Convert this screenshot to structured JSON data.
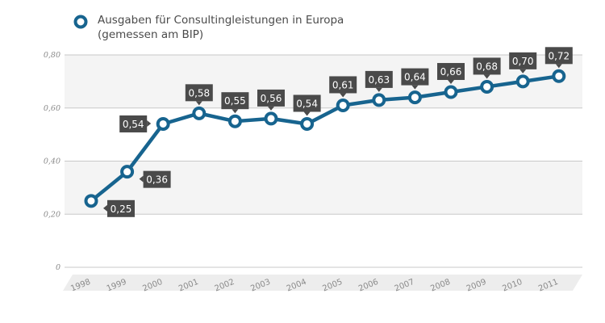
{
  "chart_data": {
    "type": "line",
    "title": "",
    "legend": {
      "entries": [
        "Ausgaben für Consultingleistungen in Europa",
        "(gemessen am BIP)"
      ],
      "placement": "top-left"
    },
    "x": [
      "1998",
      "1999",
      "2000",
      "2001",
      "2002",
      "2003",
      "2004",
      "2005",
      "2006",
      "2007",
      "2008",
      "2009",
      "2010",
      "2011"
    ],
    "series": [
      {
        "name": "Ausgaben für Consultingleistungen in Europa (gemessen am BIP)",
        "values": [
          0.25,
          0.36,
          0.54,
          0.58,
          0.55,
          0.56,
          0.54,
          0.61,
          0.63,
          0.64,
          0.66,
          0.68,
          0.7,
          0.72
        ],
        "labels": [
          "0,25",
          "0,36",
          "0,54",
          "0,58",
          "0,55",
          "0,56",
          "0,54",
          "0,61",
          "0,63",
          "0,64",
          "0,66",
          "0,68",
          "0,70",
          "0,72"
        ],
        "label_side": [
          "right",
          "right",
          "left",
          "above",
          "above",
          "above",
          "above",
          "above",
          "above",
          "above",
          "above",
          "above",
          "above",
          "above"
        ]
      }
    ],
    "yticks": [
      {
        "value": 0,
        "label": "0"
      },
      {
        "value": 0.2,
        "label": "0,20"
      },
      {
        "value": 0.4,
        "label": "0,40"
      },
      {
        "value": 0.6,
        "label": "0,60"
      },
      {
        "value": 0.8,
        "label": "0,80"
      }
    ],
    "ylim": [
      0,
      0.8
    ],
    "grid": true,
    "colors": {
      "line": "#17648f",
      "marker_fill": "#ffffff",
      "label_bg": "#4a4a4a",
      "band": "#f4f4f4",
      "gridline": "#c8c8c8",
      "axis_strip": "#ededed"
    }
  }
}
